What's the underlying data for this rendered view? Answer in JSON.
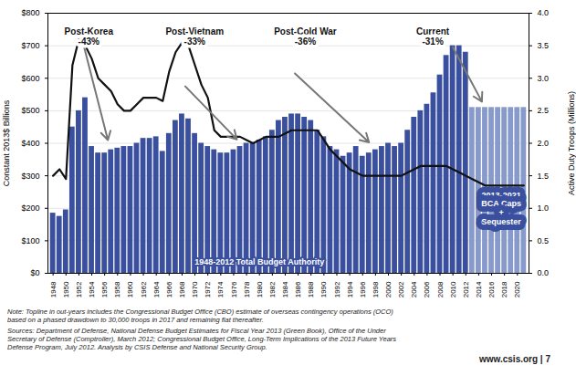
{
  "chart_data": {
    "type": "bar",
    "x": [
      1948,
      1949,
      1950,
      1951,
      1952,
      1953,
      1954,
      1955,
      1956,
      1957,
      1958,
      1959,
      1960,
      1961,
      1962,
      1963,
      1964,
      1965,
      1966,
      1967,
      1968,
      1969,
      1970,
      1971,
      1972,
      1973,
      1974,
      1975,
      1976,
      1977,
      1978,
      1979,
      1980,
      1981,
      1982,
      1983,
      1984,
      1985,
      1986,
      1987,
      1988,
      1989,
      1990,
      1991,
      1992,
      1993,
      1994,
      1995,
      1996,
      1997,
      1998,
      1999,
      2000,
      2001,
      2002,
      2003,
      2004,
      2005,
      2006,
      2007,
      2008,
      2009,
      2010,
      2011,
      2012,
      2013,
      2014,
      2015,
      2016,
      2017,
      2018,
      2019,
      2020,
      2021
    ],
    "series": [
      {
        "type": "bar",
        "values": [
          185,
          175,
          195,
          450,
          500,
          540,
          390,
          370,
          370,
          380,
          385,
          390,
          390,
          400,
          415,
          415,
          420,
          375,
          430,
          470,
          490,
          475,
          430,
          400,
          390,
          380,
          370,
          370,
          380,
          390,
          400,
          400,
          410,
          420,
          440,
          470,
          480,
          490,
          490,
          480,
          470,
          440,
          420,
          390,
          380,
          360,
          370,
          390,
          360,
          370,
          380,
          390,
          400,
          390,
          400,
          440,
          480,
          500,
          520,
          555,
          610,
          670,
          700,
          700,
          680,
          510,
          510,
          510,
          510,
          510,
          510,
          510,
          510,
          510
        ],
        "colors": [
          "#3a4f9e",
          "#3a4f9e",
          "#3a4f9e",
          "#3a4f9e",
          "#3a4f9e",
          "#3a4f9e",
          "#3a4f9e",
          "#3a4f9e",
          "#3a4f9e",
          "#3a4f9e",
          "#3a4f9e",
          "#3a4f9e",
          "#3a4f9e",
          "#3a4f9e",
          "#3a4f9e",
          "#3a4f9e",
          "#3a4f9e",
          "#3a4f9e",
          "#3a4f9e",
          "#3a4f9e",
          "#3a4f9e",
          "#3a4f9e",
          "#3a4f9e",
          "#3a4f9e",
          "#3a4f9e",
          "#3a4f9e",
          "#3a4f9e",
          "#3a4f9e",
          "#3a4f9e",
          "#3a4f9e",
          "#3a4f9e",
          "#3a4f9e",
          "#3a4f9e",
          "#3a4f9e",
          "#3a4f9e",
          "#3a4f9e",
          "#3a4f9e",
          "#3a4f9e",
          "#3a4f9e",
          "#3a4f9e",
          "#3a4f9e",
          "#3a4f9e",
          "#3a4f9e",
          "#3a4f9e",
          "#3a4f9e",
          "#3a4f9e",
          "#3a4f9e",
          "#3a4f9e",
          "#3a4f9e",
          "#3a4f9e",
          "#3a4f9e",
          "#3a4f9e",
          "#3a4f9e",
          "#3a4f9e",
          "#3a4f9e",
          "#3a4f9e",
          "#3a4f9e",
          "#3a4f9e",
          "#3a4f9e",
          "#3a4f9e",
          "#3a4f9e",
          "#3a4f9e",
          "#3a4f9e",
          "#3a4f9e",
          "#3a4f9e",
          "#8899cc",
          "#8899cc",
          "#8899cc",
          "#8899cc",
          "#8899cc",
          "#8899cc",
          "#8899cc",
          "#8899cc",
          "#8899cc"
        ]
      },
      {
        "type": "line",
        "axis": "y2",
        "color": "#111111",
        "values": [
          1.5,
          1.6,
          1.45,
          3.2,
          3.6,
          3.5,
          3.3,
          3.0,
          2.9,
          2.8,
          2.6,
          2.5,
          2.5,
          2.6,
          2.7,
          2.7,
          2.7,
          2.65,
          3.1,
          3.4,
          3.55,
          3.5,
          3.2,
          2.9,
          2.7,
          2.2,
          2.1,
          2.1,
          2.1,
          2.1,
          2.05,
          2.0,
          2.05,
          2.1,
          2.1,
          2.1,
          2.15,
          2.2,
          2.2,
          2.2,
          2.2,
          2.2,
          2.05,
          1.9,
          1.8,
          1.7,
          1.6,
          1.55,
          1.5,
          1.5,
          1.5,
          1.5,
          1.5,
          1.5,
          1.5,
          1.55,
          1.6,
          1.65,
          1.65,
          1.65,
          1.65,
          1.65,
          1.6,
          1.55,
          1.5,
          1.45,
          1.4,
          1.35,
          1.35,
          1.35,
          1.35,
          1.35,
          1.35,
          1.35
        ]
      }
    ],
    "ylabel": "Constant 2013$ Billions",
    "y2label": "Active Duty Troops (Millions)",
    "xlim": [
      1947.2,
      2021.8
    ],
    "xticks": [
      1948,
      1950,
      1952,
      1954,
      1956,
      1958,
      1960,
      1962,
      1964,
      1966,
      1968,
      1970,
      1972,
      1974,
      1976,
      1978,
      1980,
      1982,
      1984,
      1986,
      1988,
      1990,
      1992,
      1994,
      1996,
      1998,
      2000,
      2002,
      2004,
      2006,
      2008,
      2010,
      2012,
      2014,
      2016,
      2018,
      2020
    ],
    "ylim": [
      0,
      800
    ],
    "yticks": [
      {
        "value": 0,
        "label": "$0"
      },
      {
        "value": 100,
        "label": "$100"
      },
      {
        "value": 200,
        "label": "$200"
      },
      {
        "value": 300,
        "label": "$300"
      },
      {
        "value": 400,
        "label": "$400"
      },
      {
        "value": 500,
        "label": "$500"
      },
      {
        "value": 600,
        "label": "$600"
      },
      {
        "value": 700,
        "label": "$700"
      },
      {
        "value": 800,
        "label": "$800"
      }
    ],
    "y2lim": [
      0,
      4.0
    ],
    "y2ticks": [
      {
        "value": 0,
        "label": "0.0"
      },
      0.5,
      {
        "value": 1,
        "label": "1.0"
      },
      1.5,
      {
        "value": 2,
        "label": "2.0"
      },
      2.5,
      {
        "value": 3,
        "label": "3.0"
      },
      3.5,
      {
        "value": 4,
        "label": "4.0"
      }
    ],
    "grid": true,
    "annotations": [
      "Post-Korea\n-43%",
      "Post-Vietnam\n-33%",
      "Post-Cold War\n-36%",
      "Current\n-31%",
      "2013-2021\nBCA Caps\n+\nSequester",
      "1948-2012 Total Budget Authority"
    ],
    "caption": [
      "Note:  Topline in out-years includes the Congressional Budget Office (CBO) estimate of overseas contingency operations (OCO)\nbased on a phased drawdown to 30,000 troops in 2017 and remaining flat thereafter.",
      "Sources:  Department of Defense, National Defense Budget Estimates for Fiscal Year 2013 (Green Book), Office of the Under\nSecretary of Defense (Comptroller), March 2012; Congressional Budget Office, Long-Term Implications of the 2013 Future Years\nDefense Program, July 2012.  Analysis by CSIS Defense and National Security Group.",
      "www.csis.org  |  7"
    ]
  }
}
